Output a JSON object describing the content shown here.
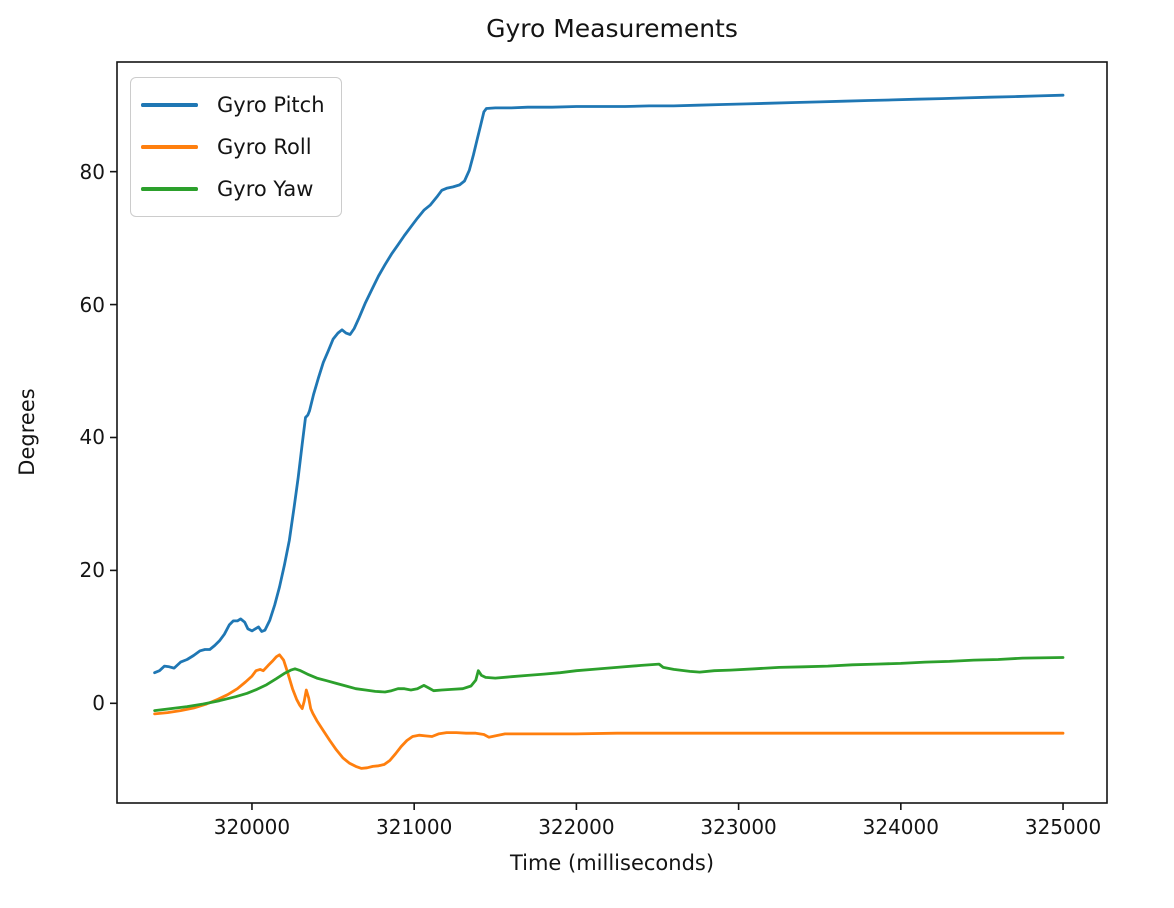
{
  "chart_data": {
    "type": "line",
    "title": "Gyro Measurements",
    "xlabel": "Time (milliseconds)",
    "ylabel": "Degrees",
    "xlim": [
      319168,
      325271
    ],
    "ylim": [
      -15.0,
      96.5
    ],
    "xticks": [
      320000,
      321000,
      322000,
      323000,
      324000,
      325000
    ],
    "yticks": [
      0,
      20,
      40,
      60,
      80
    ],
    "grid": false,
    "legend_position": "upper left",
    "series": [
      {
        "name": "Gyro Pitch",
        "color": "#1f77b4",
        "points": [
          [
            319400,
            4.6
          ],
          [
            319430,
            4.9
          ],
          [
            319460,
            5.6
          ],
          [
            319490,
            5.5
          ],
          [
            319520,
            5.3
          ],
          [
            319560,
            6.2
          ],
          [
            319600,
            6.6
          ],
          [
            319640,
            7.2
          ],
          [
            319680,
            7.9
          ],
          [
            319710,
            8.1
          ],
          [
            319740,
            8.1
          ],
          [
            319770,
            8.7
          ],
          [
            319800,
            9.4
          ],
          [
            319830,
            10.4
          ],
          [
            319860,
            11.8
          ],
          [
            319885,
            12.4
          ],
          [
            319910,
            12.4
          ],
          [
            319930,
            12.7
          ],
          [
            319955,
            12.2
          ],
          [
            319975,
            11.2
          ],
          [
            320000,
            10.9
          ],
          [
            320020,
            11.2
          ],
          [
            320040,
            11.5
          ],
          [
            320060,
            10.8
          ],
          [
            320080,
            11.0
          ],
          [
            320110,
            12.5
          ],
          [
            320140,
            14.8
          ],
          [
            320170,
            17.5
          ],
          [
            320200,
            20.8
          ],
          [
            320230,
            24.5
          ],
          [
            320260,
            29.5
          ],
          [
            320285,
            34.0
          ],
          [
            320310,
            39.0
          ],
          [
            320330,
            43.0
          ],
          [
            320345,
            43.4
          ],
          [
            320355,
            44.0
          ],
          [
            320380,
            46.5
          ],
          [
            320410,
            49.0
          ],
          [
            320440,
            51.3
          ],
          [
            320470,
            53.0
          ],
          [
            320500,
            54.8
          ],
          [
            320530,
            55.7
          ],
          [
            320555,
            56.2
          ],
          [
            320580,
            55.7
          ],
          [
            320605,
            55.5
          ],
          [
            320630,
            56.4
          ],
          [
            320660,
            58.0
          ],
          [
            320700,
            60.3
          ],
          [
            320740,
            62.3
          ],
          [
            320780,
            64.3
          ],
          [
            320820,
            66.0
          ],
          [
            320860,
            67.6
          ],
          [
            320900,
            69.0
          ],
          [
            320940,
            70.4
          ],
          [
            320980,
            71.7
          ],
          [
            321020,
            73.0
          ],
          [
            321060,
            74.2
          ],
          [
            321100,
            75.0
          ],
          [
            321140,
            76.2
          ],
          [
            321170,
            77.2
          ],
          [
            321200,
            77.5
          ],
          [
            321240,
            77.7
          ],
          [
            321280,
            78.0
          ],
          [
            321310,
            78.6
          ],
          [
            321340,
            80.2
          ],
          [
            321365,
            82.5
          ],
          [
            321390,
            85.0
          ],
          [
            321410,
            87.0
          ],
          [
            321430,
            89.0
          ],
          [
            321445,
            89.5
          ],
          [
            321500,
            89.6
          ],
          [
            321600,
            89.6
          ],
          [
            321700,
            89.7
          ],
          [
            321850,
            89.7
          ],
          [
            322000,
            89.8
          ],
          [
            322150,
            89.8
          ],
          [
            322300,
            89.8
          ],
          [
            322450,
            89.9
          ],
          [
            322600,
            89.9
          ],
          [
            322750,
            90.0
          ],
          [
            322900,
            90.1
          ],
          [
            323050,
            90.2
          ],
          [
            323200,
            90.3
          ],
          [
            323350,
            90.4
          ],
          [
            323500,
            90.5
          ],
          [
            323650,
            90.6
          ],
          [
            323800,
            90.7
          ],
          [
            323950,
            90.8
          ],
          [
            324100,
            90.9
          ],
          [
            324250,
            91.0
          ],
          [
            324400,
            91.1
          ],
          [
            324550,
            91.2
          ],
          [
            324700,
            91.3
          ],
          [
            324850,
            91.4
          ],
          [
            325000,
            91.5
          ]
        ]
      },
      {
        "name": "Gyro Roll",
        "color": "#ff7f0e",
        "points": [
          [
            319400,
            -1.6
          ],
          [
            319480,
            -1.4
          ],
          [
            319560,
            -1.1
          ],
          [
            319640,
            -0.7
          ],
          [
            319720,
            -0.1
          ],
          [
            319790,
            0.6
          ],
          [
            319850,
            1.3
          ],
          [
            319910,
            2.2
          ],
          [
            319960,
            3.2
          ],
          [
            320000,
            4.1
          ],
          [
            320025,
            4.9
          ],
          [
            320050,
            5.1
          ],
          [
            320070,
            4.9
          ],
          [
            320100,
            5.7
          ],
          [
            320125,
            6.3
          ],
          [
            320150,
            7.0
          ],
          [
            320170,
            7.3
          ],
          [
            320195,
            6.5
          ],
          [
            320220,
            4.6
          ],
          [
            320250,
            2.2
          ],
          [
            320275,
            0.6
          ],
          [
            320295,
            -0.3
          ],
          [
            320310,
            -0.8
          ],
          [
            320322,
            0.3
          ],
          [
            320335,
            2.0
          ],
          [
            320350,
            0.8
          ],
          [
            320362,
            -0.8
          ],
          [
            320375,
            -1.5
          ],
          [
            320400,
            -2.6
          ],
          [
            320440,
            -4.1
          ],
          [
            320480,
            -5.6
          ],
          [
            320520,
            -7.0
          ],
          [
            320560,
            -8.2
          ],
          [
            320600,
            -9.0
          ],
          [
            320640,
            -9.5
          ],
          [
            320675,
            -9.8
          ],
          [
            320710,
            -9.7
          ],
          [
            320745,
            -9.5
          ],
          [
            320780,
            -9.4
          ],
          [
            320815,
            -9.2
          ],
          [
            320850,
            -8.6
          ],
          [
            320885,
            -7.6
          ],
          [
            320920,
            -6.5
          ],
          [
            320955,
            -5.6
          ],
          [
            320990,
            -5.0
          ],
          [
            321030,
            -4.8
          ],
          [
            321070,
            -4.9
          ],
          [
            321110,
            -5.0
          ],
          [
            321150,
            -4.6
          ],
          [
            321200,
            -4.4
          ],
          [
            321260,
            -4.4
          ],
          [
            321320,
            -4.5
          ],
          [
            321380,
            -4.5
          ],
          [
            321430,
            -4.7
          ],
          [
            321460,
            -5.1
          ],
          [
            321500,
            -4.9
          ],
          [
            321560,
            -4.6
          ],
          [
            321650,
            -4.6
          ],
          [
            321800,
            -4.6
          ],
          [
            322000,
            -4.6
          ],
          [
            322250,
            -4.5
          ],
          [
            322500,
            -4.5
          ],
          [
            322750,
            -4.5
          ],
          [
            323000,
            -4.5
          ],
          [
            323250,
            -4.5
          ],
          [
            323500,
            -4.5
          ],
          [
            323750,
            -4.5
          ],
          [
            324000,
            -4.5
          ],
          [
            324250,
            -4.5
          ],
          [
            324500,
            -4.5
          ],
          [
            324750,
            -4.5
          ],
          [
            325000,
            -4.5
          ]
        ]
      },
      {
        "name": "Gyro Yaw",
        "color": "#2ca02c",
        "points": [
          [
            319400,
            -1.1
          ],
          [
            319500,
            -0.8
          ],
          [
            319600,
            -0.5
          ],
          [
            319700,
            -0.1
          ],
          [
            319800,
            0.4
          ],
          [
            319900,
            1.0
          ],
          [
            319970,
            1.5
          ],
          [
            320030,
            2.1
          ],
          [
            320090,
            2.8
          ],
          [
            320150,
            3.7
          ],
          [
            320200,
            4.5
          ],
          [
            320240,
            5.0
          ],
          [
            320265,
            5.2
          ],
          [
            320300,
            4.9
          ],
          [
            320350,
            4.3
          ],
          [
            320400,
            3.8
          ],
          [
            320460,
            3.4
          ],
          [
            320520,
            3.0
          ],
          [
            320580,
            2.6
          ],
          [
            320640,
            2.2
          ],
          [
            320700,
            2.0
          ],
          [
            320760,
            1.8
          ],
          [
            320820,
            1.7
          ],
          [
            320860,
            1.9
          ],
          [
            320900,
            2.2
          ],
          [
            320940,
            2.2
          ],
          [
            320980,
            2.0
          ],
          [
            321020,
            2.2
          ],
          [
            321060,
            2.7
          ],
          [
            321090,
            2.3
          ],
          [
            321120,
            1.9
          ],
          [
            321170,
            2.0
          ],
          [
            321230,
            2.1
          ],
          [
            321300,
            2.2
          ],
          [
            321350,
            2.6
          ],
          [
            321380,
            3.5
          ],
          [
            321395,
            4.9
          ],
          [
            321415,
            4.2
          ],
          [
            321440,
            3.9
          ],
          [
            321500,
            3.8
          ],
          [
            321600,
            4.0
          ],
          [
            321700,
            4.2
          ],
          [
            321800,
            4.4
          ],
          [
            321900,
            4.6
          ],
          [
            322000,
            4.9
          ],
          [
            322100,
            5.1
          ],
          [
            322250,
            5.4
          ],
          [
            322400,
            5.7
          ],
          [
            322510,
            5.9
          ],
          [
            322535,
            5.4
          ],
          [
            322600,
            5.1
          ],
          [
            322700,
            4.8
          ],
          [
            322760,
            4.7
          ],
          [
            322850,
            4.9
          ],
          [
            322950,
            5.0
          ],
          [
            323100,
            5.2
          ],
          [
            323250,
            5.4
          ],
          [
            323400,
            5.5
          ],
          [
            323550,
            5.6
          ],
          [
            323700,
            5.8
          ],
          [
            323850,
            5.9
          ],
          [
            324000,
            6.0
          ],
          [
            324150,
            6.2
          ],
          [
            324300,
            6.3
          ],
          [
            324450,
            6.5
          ],
          [
            324600,
            6.6
          ],
          [
            324750,
            6.8
          ],
          [
            325000,
            6.9
          ]
        ]
      }
    ]
  }
}
